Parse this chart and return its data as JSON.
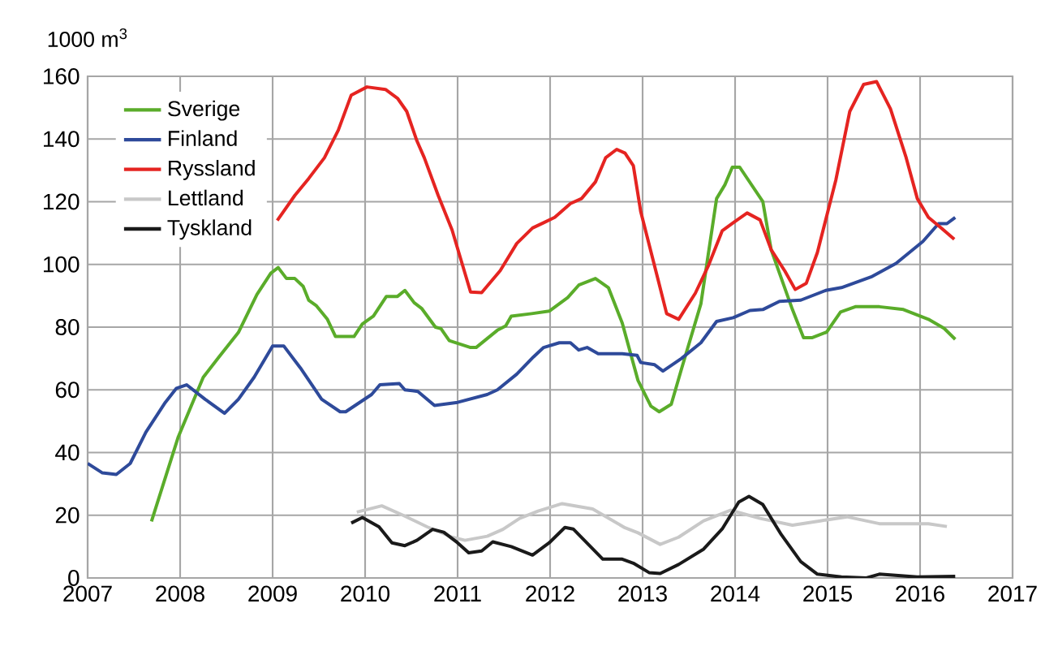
{
  "chart_data": {
    "type": "line",
    "ylabel": "1000 m$^{3}$",
    "xlim": [
      2007,
      2017
    ],
    "xticks": [
      2007,
      2008,
      2009,
      2010,
      2011,
      2012,
      2013,
      2014,
      2015,
      2016,
      2017
    ],
    "ylim": [
      0,
      160
    ],
    "yticks": [
      0,
      20,
      40,
      60,
      80,
      100,
      120,
      140,
      160
    ],
    "grid": true,
    "legend": "top left",
    "marker": "none",
    "line_style": "solid",
    "series": [
      {
        "name": "Sverige",
        "color": "#5aac2a",
        "x": [
          2007.69,
          2007.98,
          2008.25,
          2008.42,
          2008.63,
          2008.83,
          2008.98,
          2009.06,
          2009.15,
          2009.24,
          2009.33,
          2009.39,
          2009.47,
          2009.59,
          2009.68,
          2009.88,
          2009.97,
          2010.09,
          2010.23,
          2010.35,
          2010.43,
          2010.53,
          2010.61,
          2010.76,
          2010.82,
          2010.91,
          2011.14,
          2011.2,
          2011.43,
          2011.52,
          2011.58,
          2011.8,
          2011.99,
          2012.19,
          2012.31,
          2012.49,
          2012.63,
          2012.78,
          2012.95,
          2013.09,
          2013.18,
          2013.31,
          2013.42,
          2013.63,
          2013.8,
          2013.89,
          2013.97,
          2014.05,
          2014.3,
          2014.39,
          2014.62,
          2014.74,
          2014.83,
          2014.99,
          2015.14,
          2015.3,
          2015.56,
          2015.82,
          2016.09,
          2016.26,
          2016.38
        ],
        "values": [
          18,
          45,
          64,
          70.5,
          78.3,
          90.4,
          97.2,
          99,
          95.5,
          95.5,
          93,
          88.6,
          86.9,
          82.6,
          77,
          77,
          81,
          83.5,
          89.8,
          89.8,
          91.7,
          87.8,
          86,
          80,
          79.5,
          75.7,
          73.5,
          73.5,
          79,
          80.4,
          83.5,
          84.3,
          85.1,
          89.4,
          93.4,
          95.5,
          92.6,
          81.3,
          63,
          54.8,
          53,
          55.4,
          66.6,
          87.4,
          121,
          125.4,
          131,
          131,
          120,
          104.7,
          85.6,
          76.6,
          76.6,
          78.4,
          84.8,
          86.5,
          86.5,
          85.6,
          82.5,
          79.6,
          76.1
        ]
      },
      {
        "name": "Finland",
        "color": "#2e4a9a",
        "x": [
          2007.0,
          2007.16,
          2007.31,
          2007.46,
          2007.63,
          2007.84,
          2007.96,
          2008.07,
          2008.27,
          2008.48,
          2008.63,
          2008.8,
          2009.0,
          2009.12,
          2009.3,
          2009.53,
          2009.73,
          2009.79,
          2010.07,
          2010.16,
          2010.37,
          2010.43,
          2010.57,
          2010.75,
          2011.0,
          2011.32,
          2011.43,
          2011.64,
          2011.82,
          2011.93,
          2012.1,
          2012.22,
          2012.31,
          2012.4,
          2012.52,
          2012.78,
          2012.94,
          2012.98,
          2013.13,
          2013.22,
          2013.42,
          2013.63,
          2013.8,
          2013.98,
          2014.16,
          2014.3,
          2014.48,
          2014.71,
          2014.98,
          2015.15,
          2015.47,
          2015.74,
          2016.03,
          2016.2,
          2016.29,
          2016.38
        ],
        "values": [
          36.5,
          33.5,
          33,
          36.5,
          46.5,
          56,
          60.5,
          61.6,
          57,
          52.5,
          57,
          64,
          74,
          74,
          67,
          57,
          53,
          53,
          58.5,
          61.6,
          62,
          60,
          59.5,
          55,
          56,
          58.5,
          60,
          65,
          70.5,
          73.5,
          75,
          75,
          72.7,
          73.5,
          71.5,
          71.5,
          71,
          68.7,
          68,
          66,
          70,
          75,
          81.8,
          83,
          85.3,
          85.6,
          88.2,
          88.6,
          91.7,
          92.6,
          96,
          100.3,
          107.3,
          113,
          113,
          115
        ]
      },
      {
        "name": "Ryssland",
        "color": "#e52421",
        "x": [
          2009.05,
          2009.24,
          2009.39,
          2009.56,
          2009.71,
          2009.85,
          2010.02,
          2010.22,
          2010.35,
          2010.45,
          2010.56,
          2010.64,
          2010.79,
          2010.94,
          2011.14,
          2011.26,
          2011.46,
          2011.64,
          2011.81,
          2011.93,
          2012.05,
          2012.22,
          2012.34,
          2012.49,
          2012.6,
          2012.72,
          2012.81,
          2012.9,
          2012.98,
          2013.16,
          2013.26,
          2013.39,
          2013.57,
          2013.71,
          2013.86,
          2013.98,
          2014.13,
          2014.27,
          2014.39,
          2014.54,
          2014.65,
          2014.77,
          2014.89,
          2015.09,
          2015.24,
          2015.39,
          2015.53,
          2015.68,
          2015.85,
          2015.97,
          2016.09,
          2016.23,
          2016.37
        ],
        "values": [
          114,
          122,
          127.4,
          134,
          142.8,
          154,
          156.6,
          155.8,
          153,
          148.8,
          139.4,
          134,
          122,
          111,
          91.2,
          91,
          98,
          106.7,
          111.6,
          113.3,
          115,
          119.4,
          121,
          126.3,
          134,
          136.7,
          135.5,
          131.5,
          116.8,
          96,
          84.3,
          82.5,
          90.8,
          99.5,
          110.7,
          113.3,
          116.4,
          114.2,
          104.7,
          97.8,
          92,
          94,
          103.8,
          127,
          148.8,
          157.4,
          158.3,
          149.6,
          134,
          121,
          115,
          111.6,
          108
        ]
      },
      {
        "name": "Lettland",
        "color": "#c8c8c8",
        "x": [
          2009.91,
          2010.18,
          2010.41,
          2010.67,
          2010.94,
          2011.08,
          2011.32,
          2011.49,
          2011.67,
          2011.87,
          2012.13,
          2012.46,
          2012.81,
          2012.95,
          2013.19,
          2013.39,
          2013.66,
          2013.95,
          2014.27,
          2014.62,
          2014.92,
          2015.21,
          2015.56,
          2016.09,
          2016.29
        ],
        "values": [
          21,
          23,
          20,
          16.3,
          13,
          12,
          13.3,
          15.5,
          19,
          21.3,
          23.7,
          22,
          16,
          14.4,
          10.7,
          13,
          18.2,
          21.6,
          19,
          16.8,
          18.2,
          19.5,
          17.3,
          17.3,
          16.4
        ]
      },
      {
        "name": "Tyskland",
        "color": "#1a1a1a",
        "x": [
          2009.85,
          2009.97,
          2010.15,
          2010.29,
          2010.43,
          2010.56,
          2010.73,
          2010.85,
          2011.0,
          2011.12,
          2011.26,
          2011.38,
          2011.58,
          2011.81,
          2011.99,
          2012.16,
          2012.25,
          2012.57,
          2012.78,
          2012.9,
          2013.07,
          2013.19,
          2013.39,
          2013.66,
          2013.86,
          2014.04,
          2014.15,
          2014.3,
          2014.5,
          2014.71,
          2014.89,
          2015.15,
          2015.42,
          2015.56,
          2015.97,
          2016.38
        ],
        "values": [
          17.5,
          19.3,
          16.3,
          11.2,
          10.3,
          12,
          15.5,
          14.6,
          11.2,
          8,
          8.6,
          11.5,
          10,
          7.3,
          11.2,
          16.1,
          15.6,
          6,
          6,
          4.7,
          1.7,
          1.4,
          4.3,
          9.2,
          15.6,
          24.2,
          26,
          23.4,
          13.8,
          5.2,
          1.2,
          0.3,
          0,
          1.2,
          0.3,
          0.5
        ]
      }
    ]
  }
}
